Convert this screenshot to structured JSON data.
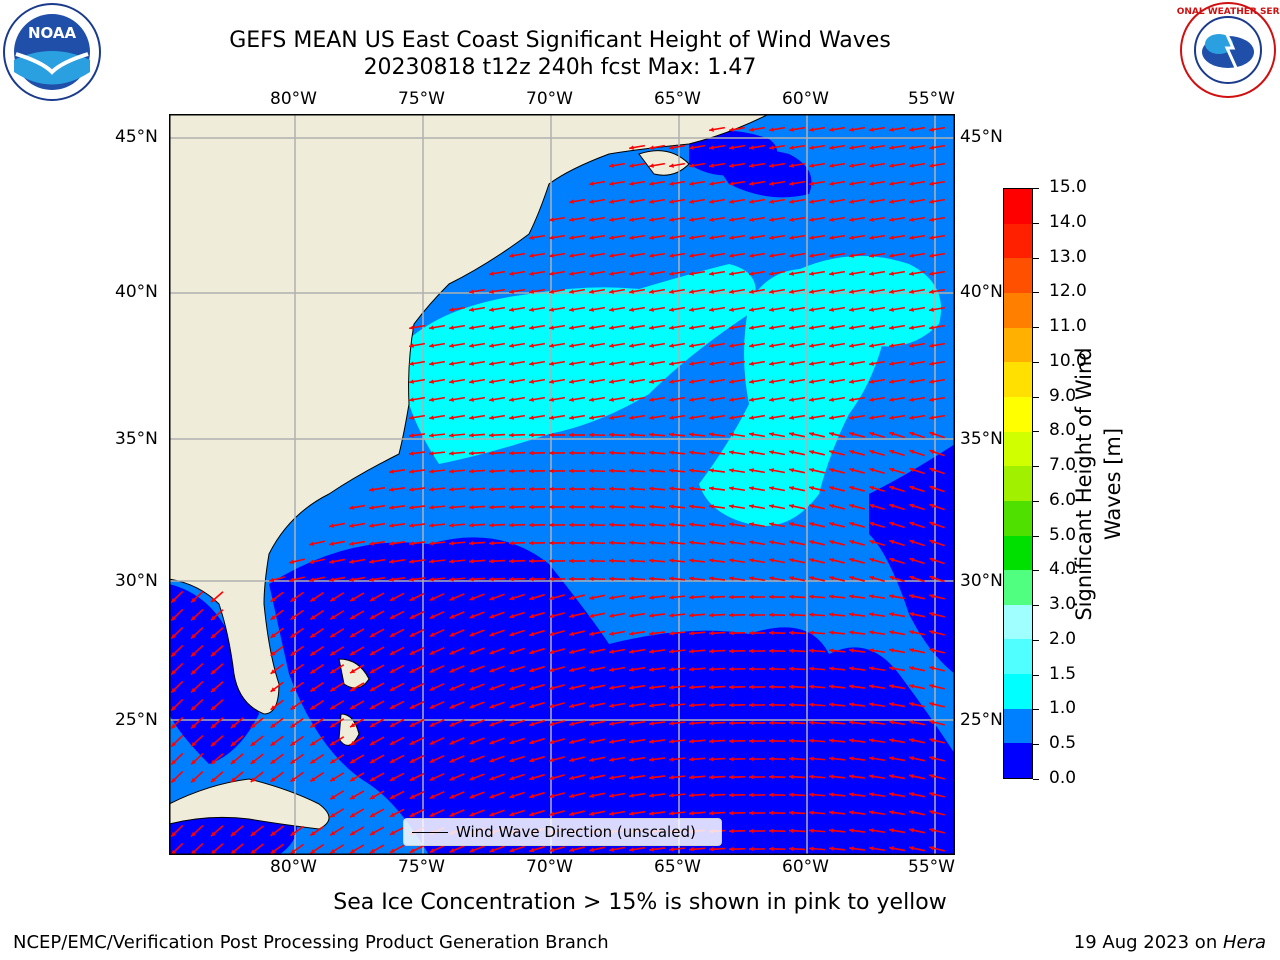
{
  "title_line1": "GEFS MEAN US East Coast Significant Height of Wind Waves",
  "title_line2": "20230818 t12z 240h fcst   Max: 1.47",
  "logos": {
    "left": "noaa-logo",
    "right": "nws-logo"
  },
  "lon_ticks": [
    "80°W",
    "75°W",
    "70°W",
    "65°W",
    "60°W",
    "55°W"
  ],
  "lat_ticks": [
    "45°N",
    "40°N",
    "35°N",
    "30°N",
    "25°N"
  ],
  "legend_label": "Wind Wave Direction (unscaled)",
  "colorbar": {
    "label_line1": "Significant Height of Wind",
    "label_line2": "Waves [m]",
    "ticks": [
      "15.0",
      "14.0",
      "13.0",
      "12.0",
      "11.0",
      "10.0",
      "9.0",
      "8.0",
      "7.0",
      "6.0",
      "5.0",
      "4.0",
      "3.0",
      "2.0",
      "1.5",
      "1.0",
      "0.5",
      "0.0"
    ],
    "colors": [
      "#0000ff",
      "#0080ff",
      "#00ffff",
      "#50ffff",
      "#a0ffff",
      "#50ff80",
      "#00e000",
      "#50e000",
      "#a0f000",
      "#d0ff00",
      "#ffff00",
      "#ffe000",
      "#ffb000",
      "#ff8000",
      "#ff5000",
      "#ff2000",
      "#ff0000"
    ]
  },
  "map_colors": {
    "land": "#efedd9",
    "wave_0_0_5": "#0000ff",
    "wave_0_5_1_0": "#0080ff",
    "wave_1_0_1_5": "#00ffff",
    "arrow": "#ff0000",
    "grid": "#b0b0b0"
  },
  "sea_ice_note": "Sea Ice Concentration > 15% is shown in pink to yellow",
  "footer_left": "NCEP/EMC/Verification Post Processing Product Generation Branch",
  "footer_right_prefix": "19 Aug 2023 on ",
  "footer_right_host": "Hera"
}
